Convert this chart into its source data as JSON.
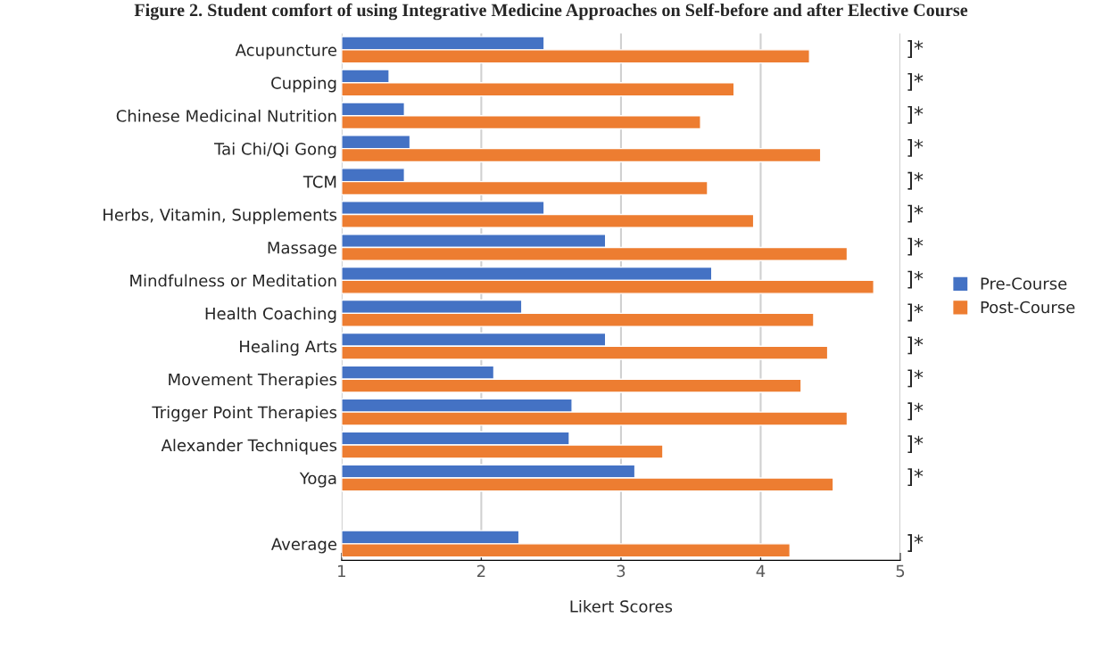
{
  "chart_data": {
    "type": "bar",
    "orientation": "horizontal",
    "title": "Figure 2. Student comfort of using Integrative Medicine Approaches on Self-before and after Elective Course",
    "xlabel": "Likert Scores",
    "categories": [
      "Acupuncture",
      "Cupping",
      "Chinese Medicinal Nutrition",
      "Tai Chi/Qi Gong",
      "TCM",
      "Herbs, Vitamin, Supplements",
      "Massage",
      "Mindfulness or Meditation",
      "Health Coaching",
      "Healing Arts",
      "Movement Therapies",
      "Trigger Point Therapies",
      "Alexander Techniques",
      "Yoga",
      null,
      "Average"
    ],
    "series": [
      {
        "name": "Pre-Course",
        "color": "#4472c4",
        "values": [
          2.45,
          1.34,
          1.45,
          1.49,
          1.45,
          2.45,
          2.89,
          3.65,
          2.29,
          2.89,
          2.09,
          2.65,
          2.63,
          3.1,
          null,
          2.27
        ]
      },
      {
        "name": "Post-Course",
        "color": "#ed7d31",
        "values": [
          4.35,
          3.81,
          3.57,
          4.43,
          3.62,
          3.95,
          4.62,
          4.81,
          4.38,
          4.48,
          4.29,
          4.62,
          3.3,
          4.52,
          null,
          4.21
        ]
      }
    ],
    "xlim": [
      1,
      5
    ],
    "xticks": [
      1,
      2,
      3,
      4,
      5
    ],
    "grid": "x",
    "legend": "right",
    "annotations": [
      "]*",
      "]*",
      "]*",
      "]*",
      "]*",
      "]*",
      "]*",
      "]*",
      "]*",
      "]*",
      "]*",
      "]*",
      "]*",
      "]*",
      "]*"
    ]
  }
}
